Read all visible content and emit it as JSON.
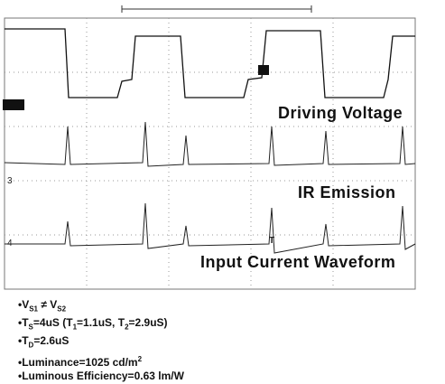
{
  "scope": {
    "channel_labels": [
      "3",
      "4"
    ],
    "trigger_marker": "T",
    "trace_labels": [
      "Driving Voltage",
      "IR Emission",
      "Input Current Waveform"
    ]
  },
  "notes": [
    [
      "V",
      "S1",
      " ≠ V",
      "S2"
    ],
    [
      "T",
      "S",
      "=4uS (T",
      "1",
      "=1.1uS, T",
      "2",
      "=2.9uS)"
    ],
    [
      "T",
      "D",
      "=2.6uS"
    ],
    [
      "Luminance=1025 cd/m",
      "2"
    ],
    [
      "Luminous Efficiency=0.63 lm/W"
    ]
  ]
}
